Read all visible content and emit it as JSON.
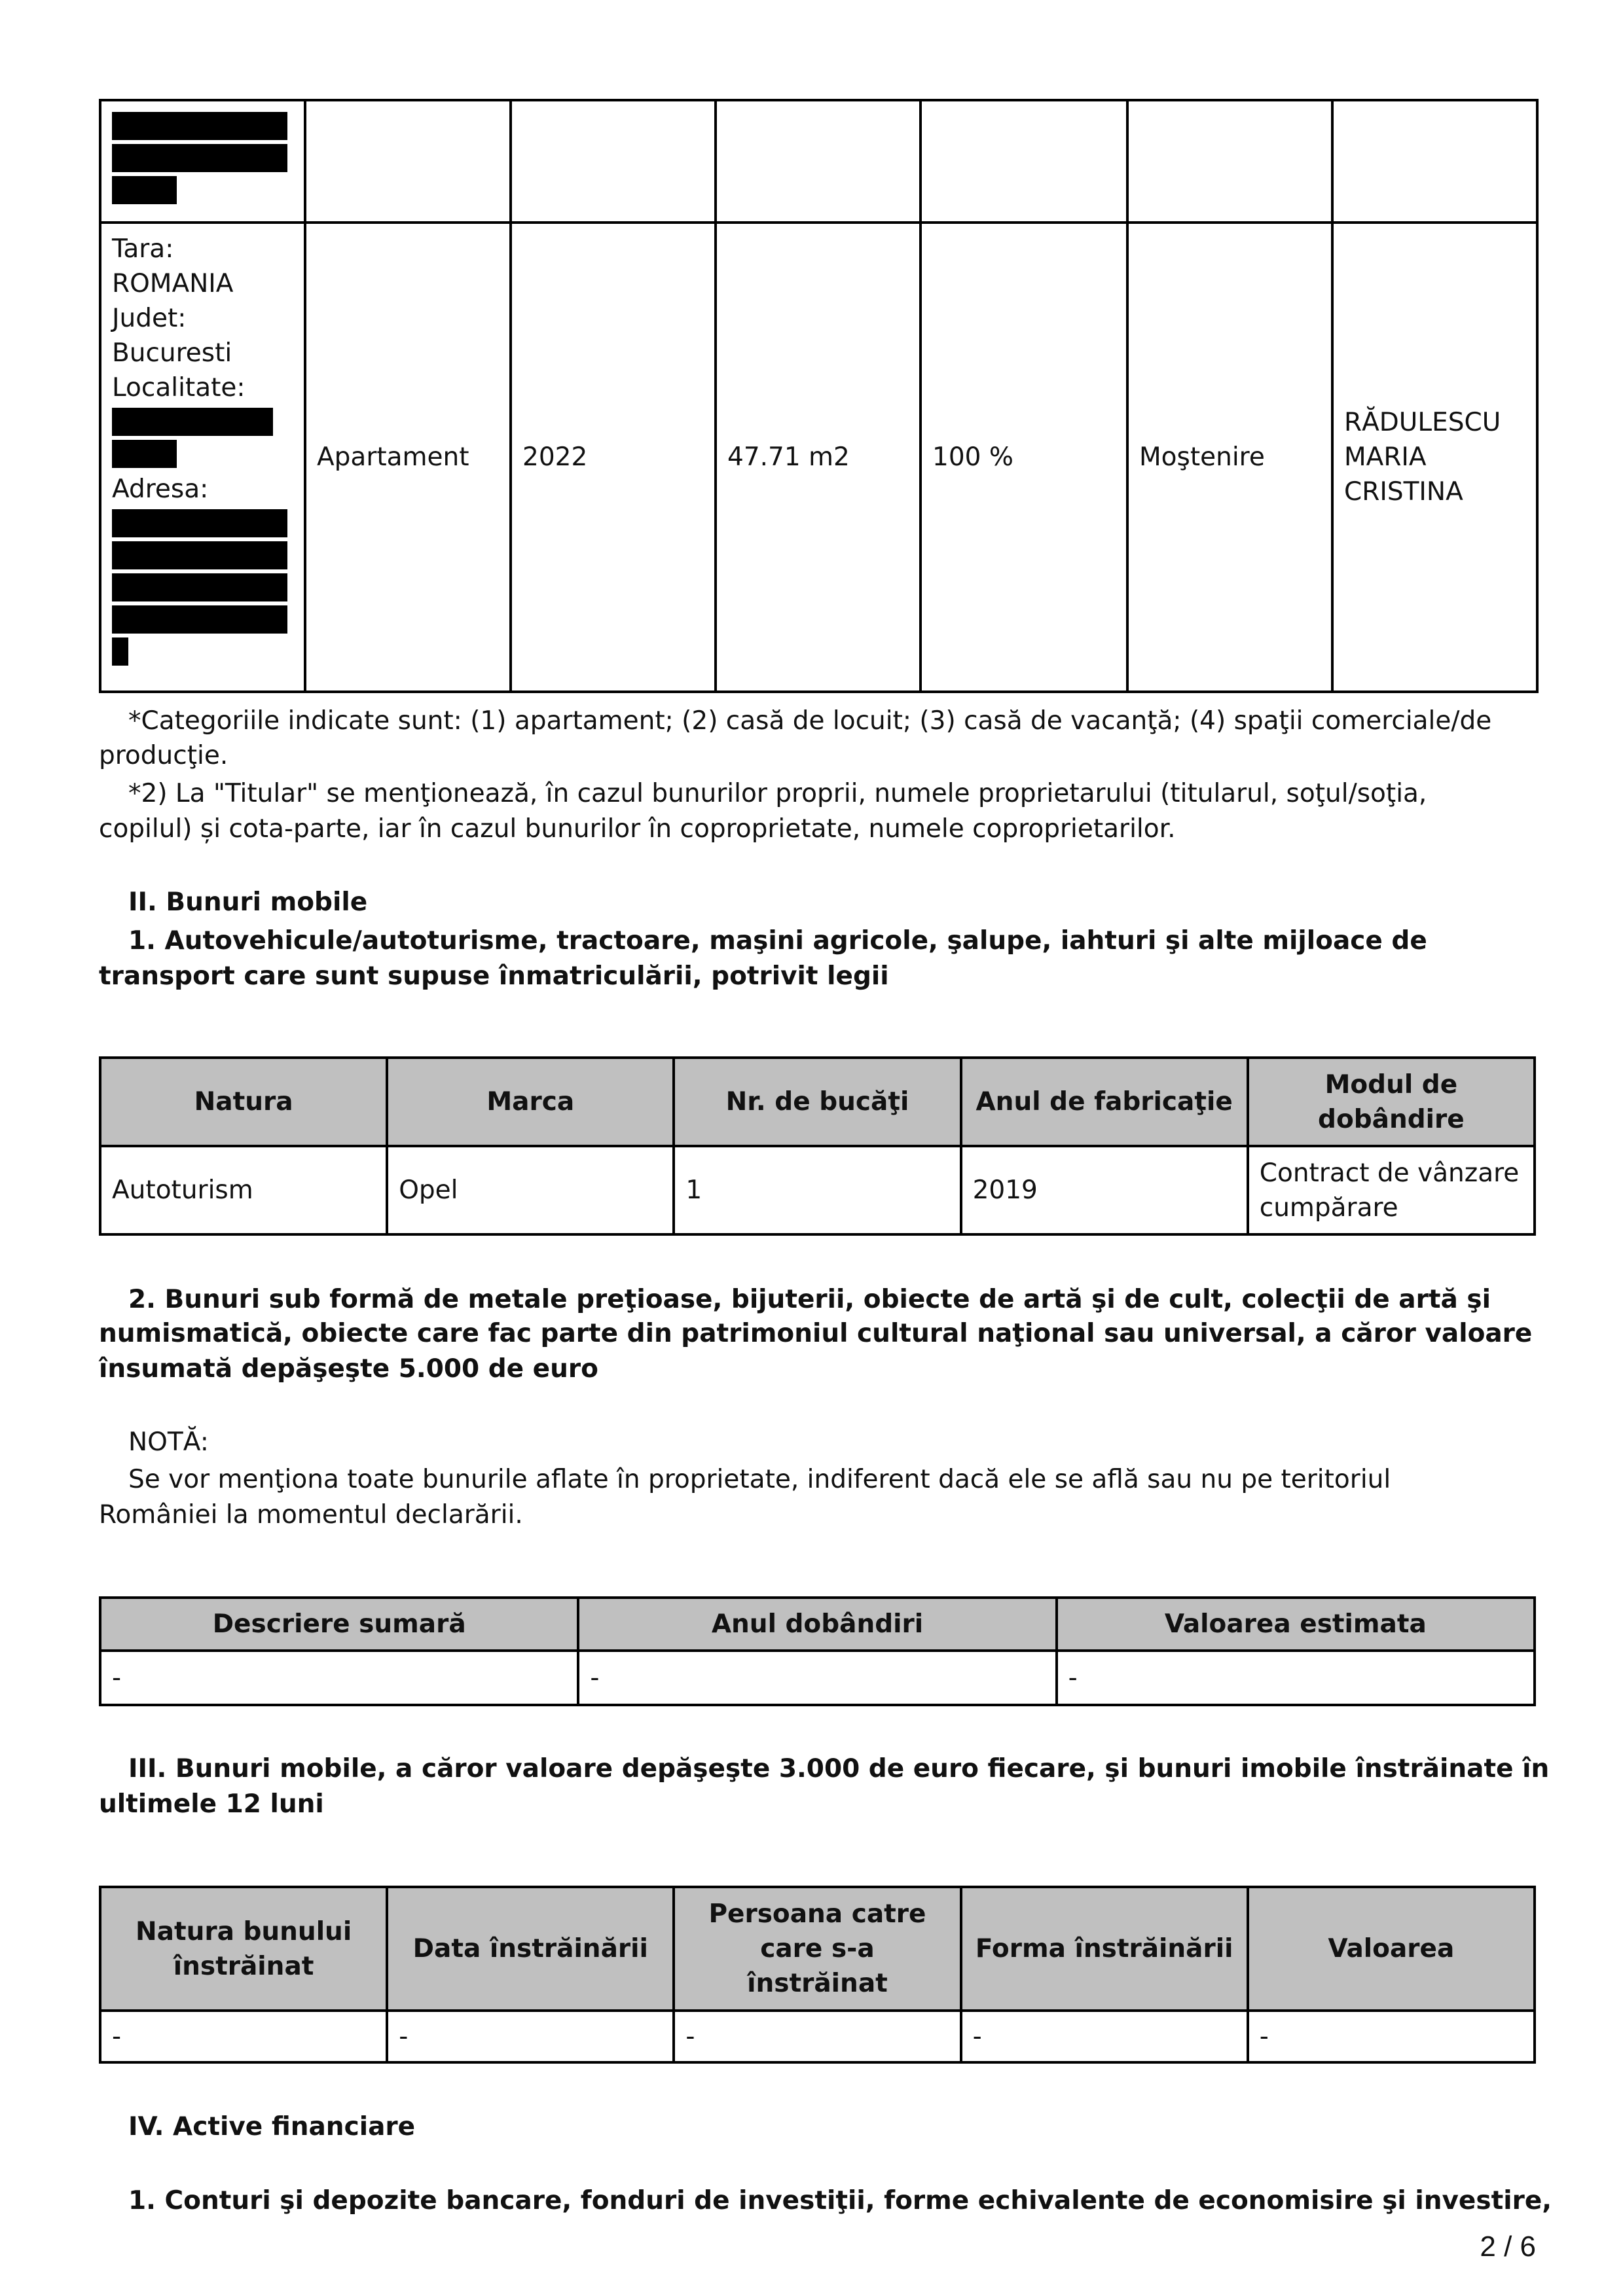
{
  "imobile_table": {
    "rows": [
      {
        "address_lines": [],
        "categorie": "",
        "anul": "",
        "suprafata": "",
        "cota": "",
        "mod": "",
        "titular": ""
      },
      {
        "address_lines": [
          "Tara:",
          "ROMANIA",
          "Judet:",
          "Bucuresti",
          "Localitate:"
        ],
        "adresa_label": "Adresa:",
        "categorie": "Apartament",
        "anul": "2022",
        "suprafata": "47.71 m2",
        "cota": "100 %",
        "mod": "Moştenire",
        "titular": "RĂDULESCU MARIA CRISTINA"
      }
    ]
  },
  "footnotes": {
    "note1_line1": "*Categoriile indicate sunt: (1) apartament; (2) casă de locuit; (3) casă de vacanţă; (4) spaţii comerciale/de",
    "note1_line2": "producţie.",
    "note2_line1": "*2) La \"Titular\" se menţionează, în cazul bunurilor proprii, numele proprietarului (titularul, soţul/soţia,",
    "note2_line2": "copilul) și cota-parte, iar în cazul bunurilor în coproprietate, numele coproprietarilor."
  },
  "section2": {
    "title": "II. Bunuri mobile",
    "sub1_line1": "1. Autovehicule/autoturisme, tractoare, maşini agricole, şalupe, iahturi şi alte mijloace de",
    "sub1_line2": "transport care sunt supuse înmatriculării, potrivit legii",
    "vehicles": {
      "headers": [
        "Natura",
        "Marca",
        "Nr. de bucăţi",
        "Anul de fabricaţie",
        "Modul de dobândire"
      ],
      "rows": [
        [
          "Autoturism",
          "Opel",
          "1",
          "2019",
          "Contract de vânzare cumpărare"
        ]
      ]
    },
    "sub2_line1": "2. Bunuri sub formă de metale preţioase, bijuterii, obiecte de artă şi de cult, colecţii de artă şi",
    "sub2_line2": "numismatică, obiecte care fac parte din patrimoniul cultural naţional sau universal, a căror valoare",
    "sub2_line3": "însumată depăşeşte 5.000 de euro",
    "nota_label": "NOTĂ:",
    "nota_line1": "Se vor menţiona toate bunurile aflate în proprietate, indiferent dacă ele se află sau nu pe teritoriul",
    "nota_line2": "României la momentul declarării.",
    "valuables": {
      "headers": [
        "Descriere sumară",
        "Anul dobândiri",
        "Valoarea estimata"
      ],
      "rows": [
        [
          "-",
          "-",
          "-"
        ]
      ]
    }
  },
  "section3": {
    "title_line1": "III. Bunuri mobile, a căror valoare depăşeşte 3.000 de euro fiecare, şi bunuri imobile înstrăinate în",
    "title_line2": "ultimele 12 luni",
    "table": {
      "headers": [
        "Natura bunului înstrăinat",
        "Data înstrăinării",
        "Persoana catre care s-a înstrăinat",
        "Forma înstrăinării",
        "Valoarea"
      ],
      "rows": [
        [
          "-",
          "-",
          "-",
          "-",
          "-"
        ]
      ]
    }
  },
  "section4": {
    "title": "IV. Active financiare",
    "sub1": "1. Conturi şi depozite bancare, fonduri de investiţii, forme echivalente de economisire şi investire,"
  },
  "page_number": "2 / 6"
}
